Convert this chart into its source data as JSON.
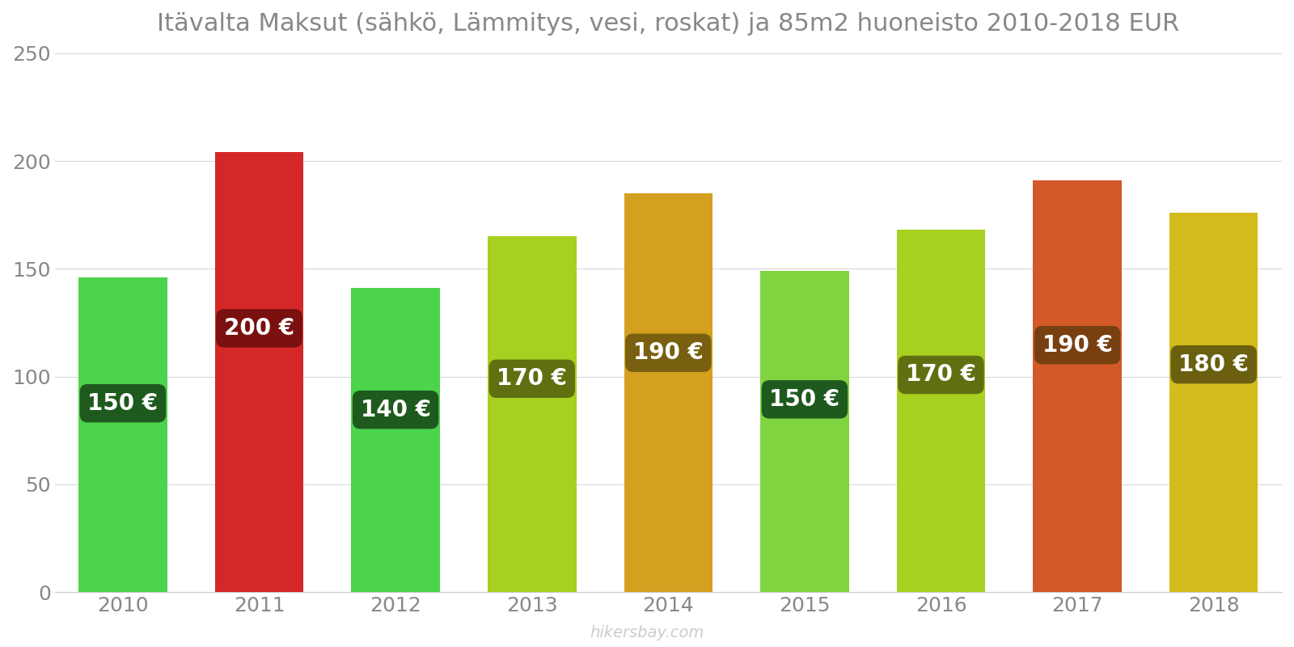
{
  "title": "Itävalta Maksut (sähkö, Lämmitys, vesi, roskat) ja 85m2 huoneisto 2010-2018 EUR",
  "years": [
    2010,
    2011,
    2012,
    2013,
    2014,
    2015,
    2016,
    2017,
    2018
  ],
  "values": [
    146,
    204,
    141,
    165,
    185,
    149,
    168,
    191,
    176
  ],
  "label_values": [
    150,
    200,
    140,
    170,
    190,
    150,
    170,
    190,
    180
  ],
  "bar_colors": [
    "#4cd44c",
    "#d42828",
    "#4cd44c",
    "#a8d020",
    "#d4a020",
    "#80d440",
    "#a8d020",
    "#d45828",
    "#d4bc1c"
  ],
  "label_bg_colors": [
    "#1e5a1e",
    "#7a1010",
    "#1e5a1e",
    "#607010",
    "#786010",
    "#1e5a1e",
    "#607010",
    "#784010",
    "#6a6010"
  ],
  "ylim": [
    0,
    250
  ],
  "yticks": [
    0,
    50,
    100,
    150,
    200,
    250
  ],
  "watermark": "hikersbay.com",
  "background_color": "#ffffff",
  "title_fontsize": 22,
  "label_fontsize": 20,
  "tick_fontsize": 18
}
